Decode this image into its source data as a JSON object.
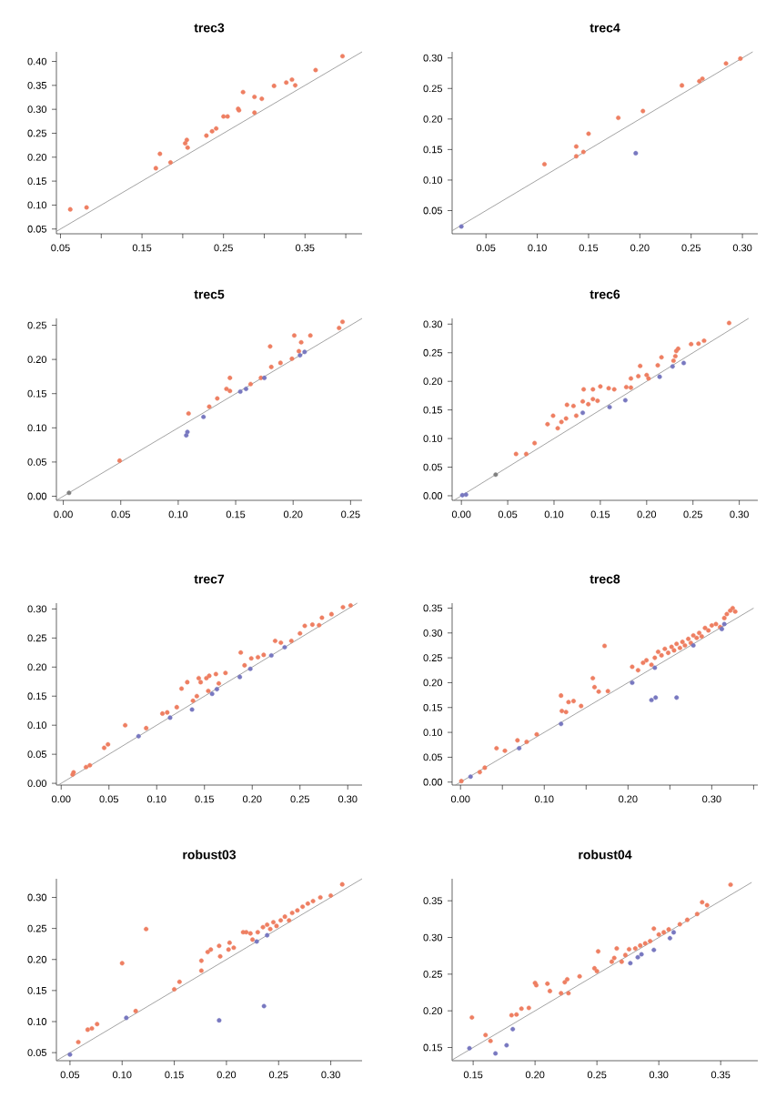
{
  "chart_data": [
    {
      "type": "scatter",
      "title": "trec3",
      "xlim": [
        0.045,
        0.42
      ],
      "ylim": [
        0.04,
        0.42
      ],
      "xticks": [
        {
          "value": 0.05,
          "label": "0.05"
        },
        {
          "value": 0.1,
          "label": null
        },
        {
          "value": 0.15,
          "label": "0.15"
        },
        {
          "value": 0.2,
          "label": null
        },
        {
          "value": 0.25,
          "label": "0.25"
        },
        {
          "value": 0.3,
          "label": null
        },
        {
          "value": 0.35,
          "label": "0.35"
        },
        {
          "value": 0.4,
          "label": null
        }
      ],
      "yticks": [
        {
          "value": 0.05,
          "label": "0.05"
        },
        {
          "value": 0.1,
          "label": "0.10"
        },
        {
          "value": 0.15,
          "label": "0.15"
        },
        {
          "value": 0.2,
          "label": "0.20"
        },
        {
          "value": 0.25,
          "label": "0.25"
        },
        {
          "value": 0.3,
          "label": "0.30"
        },
        {
          "value": 0.35,
          "label": "0.35"
        },
        {
          "value": 0.4,
          "label": "0.40"
        }
      ],
      "series": [
        {
          "type": "line",
          "marker": "none",
          "color": "#8c8c8c",
          "x": [
            0.045,
            0.42
          ],
          "values": [
            0.045,
            0.42
          ]
        },
        {
          "marker": "circle",
          "color": "#ee7f62",
          "x": [
            0.062,
            0.082,
            0.167,
            0.172,
            0.185,
            0.203,
            0.205,
            0.206,
            0.229,
            0.236,
            0.241,
            0.25,
            0.255,
            0.268,
            0.269,
            0.274,
            0.288,
            0.288,
            0.297,
            0.312,
            0.327,
            0.334,
            0.338,
            0.363,
            0.396
          ],
          "values": [
            0.091,
            0.095,
            0.177,
            0.207,
            0.189,
            0.229,
            0.236,
            0.22,
            0.245,
            0.254,
            0.26,
            0.285,
            0.285,
            0.301,
            0.298,
            0.336,
            0.326,
            0.293,
            0.322,
            0.349,
            0.356,
            0.362,
            0.35,
            0.382,
            0.411
          ]
        }
      ]
    },
    {
      "type": "scatter",
      "title": "trec4",
      "xlim": [
        0.017,
        0.315
      ],
      "ylim": [
        0.012,
        0.31
      ],
      "xticks": [
        {
          "value": 0.05,
          "label": "0.05"
        },
        {
          "value": 0.1,
          "label": "0.10"
        },
        {
          "value": 0.15,
          "label": "0.15"
        },
        {
          "value": 0.2,
          "label": "0.20"
        },
        {
          "value": 0.25,
          "label": "0.25"
        },
        {
          "value": 0.3,
          "label": "0.30"
        }
      ],
      "yticks": [
        {
          "value": 0.05,
          "label": "0.05"
        },
        {
          "value": 0.1,
          "label": "0.10"
        },
        {
          "value": 0.15,
          "label": "0.15"
        },
        {
          "value": 0.2,
          "label": "0.20"
        },
        {
          "value": 0.25,
          "label": "0.25"
        },
        {
          "value": 0.3,
          "label": "0.30"
        }
      ],
      "series": [
        {
          "type": "line",
          "marker": "none",
          "color": "#8c8c8c",
          "x": [
            0.017,
            0.31
          ],
          "values": [
            0.017,
            0.31
          ]
        },
        {
          "marker": "circle",
          "color": "#ee7f62",
          "x": [
            0.107,
            0.138,
            0.138,
            0.145,
            0.15,
            0.179,
            0.203,
            0.241,
            0.258,
            0.261,
            0.284,
            0.298
          ],
          "values": [
            0.126,
            0.155,
            0.139,
            0.146,
            0.176,
            0.202,
            0.213,
            0.255,
            0.262,
            0.266,
            0.291,
            0.299
          ]
        },
        {
          "marker": "circle",
          "color": "#7878c0",
          "x": [
            0.026,
            0.196
          ],
          "values": [
            0.024,
            0.144
          ]
        }
      ]
    },
    {
      "type": "scatter",
      "title": "trec5",
      "xlim": [
        -0.006,
        0.26
      ],
      "ylim": [
        -0.006,
        0.26
      ],
      "xticks": [
        {
          "value": 0,
          "label": "0.00"
        },
        {
          "value": 0.05,
          "label": "0.05"
        },
        {
          "value": 0.1,
          "label": "0.10"
        },
        {
          "value": 0.15,
          "label": "0.15"
        },
        {
          "value": 0.2,
          "label": "0.20"
        },
        {
          "value": 0.25,
          "label": "0.25"
        }
      ],
      "yticks": [
        {
          "value": 0,
          "label": "0.00"
        },
        {
          "value": 0.05,
          "label": "0.05"
        },
        {
          "value": 0.1,
          "label": "0.10"
        },
        {
          "value": 0.15,
          "label": "0.15"
        },
        {
          "value": 0.2,
          "label": "0.20"
        },
        {
          "value": 0.25,
          "label": "0.25"
        }
      ],
      "series": [
        {
          "type": "line",
          "marker": "none",
          "color": "#8c8c8c",
          "x": [
            -0.006,
            0.26
          ],
          "values": [
            -0.006,
            0.26
          ]
        },
        {
          "marker": "circle",
          "color": "#ee7f62",
          "x": [
            0.049,
            0.109,
            0.127,
            0.134,
            0.142,
            0.145,
            0.145,
            0.163,
            0.172,
            0.18,
            0.181,
            0.189,
            0.199,
            0.201,
            0.207,
            0.205,
            0.215,
            0.24,
            0.243
          ],
          "values": [
            0.052,
            0.121,
            0.131,
            0.143,
            0.157,
            0.173,
            0.154,
            0.164,
            0.173,
            0.219,
            0.189,
            0.195,
            0.201,
            0.235,
            0.225,
            0.212,
            0.235,
            0.246,
            0.255
          ]
        },
        {
          "marker": "circle",
          "color": "#7878c0",
          "x": [
            0.107,
            0.108,
            0.122,
            0.154,
            0.159,
            0.175,
            0.206,
            0.21
          ],
          "values": [
            0.089,
            0.094,
            0.116,
            0.153,
            0.157,
            0.173,
            0.206,
            0.211
          ]
        },
        {
          "marker": "circle",
          "color": "#808080",
          "x": [
            0.005
          ],
          "values": [
            0.005
          ]
        }
      ]
    },
    {
      "type": "scatter",
      "title": "trec6",
      "xlim": [
        -0.01,
        0.32
      ],
      "ylim": [
        -0.008,
        0.31
      ],
      "xticks": [
        {
          "value": 0,
          "label": "0.00"
        },
        {
          "value": 0.05,
          "label": "0.05"
        },
        {
          "value": 0.1,
          "label": "0.10"
        },
        {
          "value": 0.15,
          "label": "0.15"
        },
        {
          "value": 0.2,
          "label": "0.20"
        },
        {
          "value": 0.25,
          "label": "0.25"
        },
        {
          "value": 0.3,
          "label": "0.30"
        }
      ],
      "yticks": [
        {
          "value": 0,
          "label": "0.00"
        },
        {
          "value": 0.05,
          "label": "0.05"
        },
        {
          "value": 0.1,
          "label": "0.10"
        },
        {
          "value": 0.15,
          "label": "0.15"
        },
        {
          "value": 0.2,
          "label": "0.20"
        },
        {
          "value": 0.25,
          "label": "0.25"
        },
        {
          "value": 0.3,
          "label": "0.30"
        }
      ],
      "series": [
        {
          "type": "line",
          "marker": "none",
          "color": "#8c8c8c",
          "x": [
            -0.008,
            0.31
          ],
          "values": [
            -0.008,
            0.31
          ]
        },
        {
          "marker": "circle",
          "color": "#ee7f62",
          "x": [
            0.059,
            0.07,
            0.079,
            0.093,
            0.099,
            0.104,
            0.108,
            0.113,
            0.114,
            0.121,
            0.124,
            0.131,
            0.132,
            0.137,
            0.142,
            0.142,
            0.147,
            0.15,
            0.159,
            0.165,
            0.178,
            0.183,
            0.183,
            0.191,
            0.193,
            0.2,
            0.202,
            0.212,
            0.216,
            0.229,
            0.231,
            0.232,
            0.234,
            0.248,
            0.256,
            0.262,
            0.289
          ],
          "values": [
            0.073,
            0.073,
            0.092,
            0.125,
            0.14,
            0.118,
            0.129,
            0.135,
            0.159,
            0.157,
            0.14,
            0.165,
            0.186,
            0.16,
            0.186,
            0.169,
            0.166,
            0.191,
            0.188,
            0.186,
            0.19,
            0.189,
            0.205,
            0.209,
            0.227,
            0.211,
            0.205,
            0.228,
            0.242,
            0.236,
            0.244,
            0.253,
            0.257,
            0.265,
            0.266,
            0.271,
            0.302
          ]
        },
        {
          "marker": "circle",
          "color": "#7878c0",
          "x": [
            0.001,
            0.003,
            0.005,
            0.131,
            0.16,
            0.177,
            0.214,
            0.228,
            0.24
          ],
          "values": [
            0.001,
            null,
            0.002,
            0.145,
            0.155,
            0.167,
            0.208,
            0.226,
            0.232
          ]
        },
        {
          "marker": "circle",
          "color": "#808080",
          "x": [
            0.037
          ],
          "values": [
            0.037
          ]
        }
      ]
    },
    {
      "type": "scatter",
      "title": "trec7",
      "xlim": [
        -0.005,
        0.315
      ],
      "ylim": [
        -0.003,
        0.31
      ],
      "xticks": [
        {
          "value": 0,
          "label": "0.00"
        },
        {
          "value": 0.05,
          "label": "0.05"
        },
        {
          "value": 0.1,
          "label": "0.10"
        },
        {
          "value": 0.15,
          "label": "0.15"
        },
        {
          "value": 0.2,
          "label": "0.20"
        },
        {
          "value": 0.25,
          "label": "0.25"
        },
        {
          "value": 0.3,
          "label": "0.30"
        }
      ],
      "yticks": [
        {
          "value": 0,
          "label": "0.00"
        },
        {
          "value": 0.05,
          "label": "0.05"
        },
        {
          "value": 0.1,
          "label": "0.10"
        },
        {
          "value": 0.15,
          "label": "0.15"
        },
        {
          "value": 0.2,
          "label": "0.20"
        },
        {
          "value": 0.25,
          "label": "0.25"
        },
        {
          "value": 0.3,
          "label": "0.30"
        }
      ],
      "series": [
        {
          "type": "line",
          "marker": "none",
          "color": "#8c8c8c",
          "x": [
            -0.003,
            0.31
          ],
          "values": [
            -0.003,
            0.31
          ]
        },
        {
          "marker": "circle",
          "color": "#ee7f62",
          "x": [
            0.012,
            0.013,
            0.026,
            0.03,
            0.045,
            0.049,
            0.067,
            0.089,
            0.106,
            0.111,
            0.121,
            0.126,
            0.132,
            0.138,
            0.142,
            0.144,
            0.146,
            0.152,
            0.154,
            0.155,
            0.162,
            0.165,
            0.172,
            0.188,
            0.192,
            0.199,
            0.206,
            0.212,
            0.224,
            0.23,
            0.241,
            0.25,
            0.255,
            0.263,
            0.27,
            0.273,
            0.283,
            0.295,
            0.303
          ],
          "values": [
            0.015,
            0.019,
            0.028,
            0.031,
            0.061,
            0.067,
            0.1,
            0.095,
            0.12,
            0.122,
            0.131,
            0.163,
            0.174,
            0.142,
            0.15,
            0.181,
            0.174,
            0.181,
            0.159,
            0.185,
            0.188,
            0.172,
            0.19,
            0.225,
            0.203,
            0.215,
            0.217,
            0.221,
            0.245,
            0.242,
            0.245,
            0.258,
            0.271,
            0.273,
            0.272,
            0.285,
            0.291,
            0.303,
            0.306
          ]
        },
        {
          "marker": "circle",
          "color": "#7878c0",
          "x": [
            0.081,
            0.114,
            0.137,
            0.158,
            0.163,
            0.187,
            0.198,
            0.22,
            0.234
          ],
          "values": [
            0.081,
            0.113,
            0.127,
            0.154,
            0.162,
            0.183,
            0.197,
            0.22,
            0.234
          ]
        }
      ]
    },
    {
      "type": "scatter",
      "title": "trec8",
      "xlim": [
        -0.01,
        0.355
      ],
      "ylim": [
        -0.006,
        0.36
      ],
      "xticks": [
        {
          "value": 0,
          "label": "0.00"
        },
        {
          "value": 0.05,
          "label": null
        },
        {
          "value": 0.1,
          "label": "0.10"
        },
        {
          "value": 0.15,
          "label": null
        },
        {
          "value": 0.2,
          "label": "0.20"
        },
        {
          "value": 0.25,
          "label": null
        },
        {
          "value": 0.3,
          "label": "0.30"
        },
        {
          "value": 0.35,
          "label": null
        }
      ],
      "yticks": [
        {
          "value": 0,
          "label": "0.00"
        },
        {
          "value": 0.05,
          "label": "0.05"
        },
        {
          "value": 0.1,
          "label": "0.10"
        },
        {
          "value": 0.15,
          "label": "0.15"
        },
        {
          "value": 0.2,
          "label": "0.20"
        },
        {
          "value": 0.25,
          "label": "0.25"
        },
        {
          "value": 0.3,
          "label": "0.30"
        },
        {
          "value": 0.35,
          "label": "0.35"
        }
      ],
      "series": [
        {
          "type": "line",
          "marker": "none",
          "color": "#8c8c8c",
          "x": [
            -0.006,
            0.35
          ],
          "values": [
            -0.006,
            0.35
          ]
        },
        {
          "marker": "circle",
          "color": "#ee7f62",
          "x": [
            0.001,
            0.023,
            0.029,
            0.043,
            0.053,
            0.068,
            0.079,
            0.091,
            0.12,
            0.121,
            0.126,
            0.129,
            0.135,
            0.144,
            0.158,
            0.16,
            0.165,
            0.172,
            0.176,
            0.205,
            0.212,
            0.218,
            0.222,
            0.228,
            0.232,
            0.236,
            0.24,
            0.244,
            0.248,
            0.252,
            0.255,
            0.258,
            0.262,
            0.265,
            0.268,
            0.272,
            0.275,
            0.278,
            0.282,
            0.285,
            0.288,
            0.292,
            0.296,
            0.3,
            0.305,
            0.31,
            0.315,
            0.318,
            0.322,
            0.325,
            0.328
          ],
          "values": [
            0.002,
            0.02,
            0.029,
            0.068,
            0.063,
            0.084,
            0.081,
            0.096,
            0.174,
            0.143,
            0.141,
            0.161,
            0.163,
            0.153,
            0.209,
            0.191,
            0.182,
            0.274,
            0.183,
            0.232,
            0.225,
            0.24,
            0.245,
            0.236,
            0.25,
            0.262,
            0.255,
            0.268,
            0.26,
            0.272,
            0.265,
            0.278,
            0.27,
            0.282,
            0.275,
            0.288,
            0.28,
            0.295,
            0.29,
            0.3,
            0.293,
            0.31,
            0.305,
            0.315,
            0.318,
            0.312,
            0.33,
            0.338,
            0.345,
            0.35,
            0.343
          ]
        },
        {
          "marker": "circle",
          "color": "#7878c0",
          "x": [
            0.012,
            0.07,
            0.12,
            0.205,
            0.228,
            0.233,
            0.232,
            0.258,
            0.278,
            0.312,
            0.315
          ],
          "values": [
            0.011,
            0.068,
            0.117,
            0.2,
            0.165,
            0.17,
            0.23,
            0.17,
            0.275,
            0.308,
            0.318
          ]
        }
      ]
    },
    {
      "type": "scatter",
      "title": "robust03",
      "xlim": [
        0.037,
        0.33
      ],
      "ylim": [
        0.037,
        0.33
      ],
      "xticks": [
        {
          "value": 0.05,
          "label": "0.05"
        },
        {
          "value": 0.1,
          "label": "0.10"
        },
        {
          "value": 0.15,
          "label": "0.15"
        },
        {
          "value": 0.2,
          "label": "0.20"
        },
        {
          "value": 0.25,
          "label": "0.25"
        },
        {
          "value": 0.3,
          "label": "0.30"
        }
      ],
      "yticks": [
        {
          "value": 0.05,
          "label": "0.05"
        },
        {
          "value": 0.1,
          "label": "0.10"
        },
        {
          "value": 0.15,
          "label": "0.15"
        },
        {
          "value": 0.2,
          "label": "0.20"
        },
        {
          "value": 0.25,
          "label": "0.25"
        },
        {
          "value": 0.3,
          "label": "0.30"
        }
      ],
      "series": [
        {
          "type": "line",
          "marker": "none",
          "color": "#8c8c8c",
          "x": [
            0.037,
            0.33
          ],
          "values": [
            0.037,
            0.33
          ]
        },
        {
          "marker": "circle",
          "color": "#ee7f62",
          "x": [
            0.058,
            0.067,
            0.071,
            0.076,
            0.1,
            0.113,
            0.123,
            0.15,
            0.155,
            0.176,
            0.176,
            0.182,
            0.185,
            0.193,
            0.194,
            0.202,
            0.203,
            0.207,
            0.216,
            0.219,
            0.225,
            0.223,
            0.23,
            0.235,
            0.239,
            0.242,
            0.245,
            0.248,
            0.252,
            0.256,
            0.26,
            0.263,
            0.268,
            0.273,
            0.278,
            0.283,
            0.29,
            0.3,
            0.311
          ],
          "values": [
            0.067,
            0.087,
            0.089,
            0.096,
            0.194,
            0.117,
            0.249,
            0.152,
            0.164,
            0.182,
            0.198,
            0.212,
            0.216,
            0.222,
            0.205,
            0.216,
            0.227,
            0.219,
            0.244,
            0.244,
            0.232,
            0.242,
            0.244,
            0.252,
            0.256,
            0.249,
            0.26,
            0.254,
            0.263,
            0.269,
            0.263,
            0.275,
            0.279,
            0.285,
            0.29,
            0.294,
            0.3,
            0.303,
            0.321
          ]
        },
        {
          "marker": "circle",
          "color": "#7878c0",
          "x": [
            0.05,
            0.104,
            0.193,
            0.229,
            0.236,
            0.239
          ],
          "values": [
            0.047,
            0.106,
            0.102,
            0.229,
            0.125,
            0.239
          ]
        }
      ]
    },
    {
      "type": "scatter",
      "title": "robust04",
      "xlim": [
        0.133,
        0.38
      ],
      "ylim": [
        0.132,
        0.38
      ],
      "xticks": [
        {
          "value": 0.15,
          "label": "0.15"
        },
        {
          "value": 0.2,
          "label": "0.20"
        },
        {
          "value": 0.25,
          "label": "0.25"
        },
        {
          "value": 0.3,
          "label": "0.30"
        },
        {
          "value": 0.35,
          "label": "0.35"
        }
      ],
      "yticks": [
        {
          "value": 0.15,
          "label": "0.15"
        },
        {
          "value": 0.2,
          "label": "0.20"
        },
        {
          "value": 0.25,
          "label": "0.25"
        },
        {
          "value": 0.3,
          "label": "0.30"
        },
        {
          "value": 0.35,
          "label": "0.35"
        }
      ],
      "series": [
        {
          "type": "line",
          "marker": "none",
          "color": "#8c8c8c",
          "x": [
            0.133,
            0.375
          ],
          "values": [
            0.133,
            0.375
          ]
        },
        {
          "marker": "circle",
          "color": "#ee7f62",
          "x": [
            0.149,
            0.16,
            0.164,
            0.181,
            0.185,
            0.189,
            0.195,
            0.2,
            0.201,
            0.21,
            0.212,
            0.221,
            0.224,
            0.226,
            0.227,
            0.236,
            0.248,
            0.25,
            0.251,
            0.262,
            0.264,
            0.266,
            0.27,
            0.273,
            0.276,
            0.281,
            0.285,
            0.289,
            0.293,
            0.296,
            0.3,
            0.304,
            0.308,
            0.317,
            0.323,
            0.331,
            0.335,
            0.339,
            0.358
          ],
          "values": [
            0.191,
            0.167,
            0.159,
            0.194,
            0.195,
            0.203,
            0.204,
            0.238,
            0.235,
            0.237,
            0.227,
            0.224,
            0.239,
            0.243,
            0.224,
            0.247,
            0.258,
            0.254,
            0.281,
            0.267,
            0.272,
            0.285,
            0.267,
            0.276,
            0.284,
            0.285,
            0.289,
            0.292,
            0.295,
            0.312,
            0.304,
            0.307,
            0.311,
            0.318,
            0.324,
            0.332,
            0.348,
            0.344,
            0.372
          ]
        },
        {
          "marker": "circle",
          "color": "#7878c0",
          "x": [
            0.147,
            0.168,
            0.177,
            0.182,
            0.277,
            0.283,
            0.286,
            0.296,
            0.309,
            0.312
          ],
          "values": [
            0.149,
            0.142,
            0.153,
            0.175,
            0.265,
            0.273,
            0.277,
            0.283,
            0.299,
            0.307
          ]
        }
      ]
    }
  ]
}
